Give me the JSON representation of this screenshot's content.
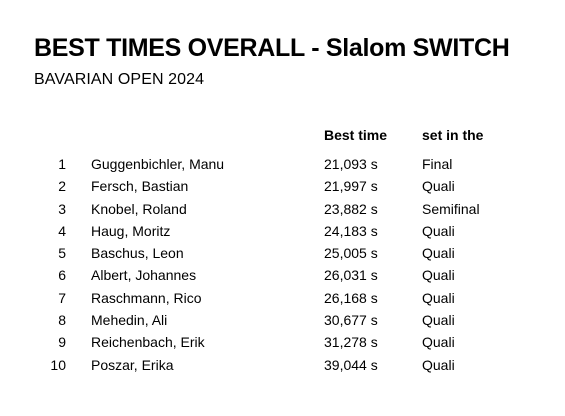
{
  "title": "BEST TIMES OVERALL - Slalom SWITCH",
  "subtitle": "BAVARIAN OPEN 2024",
  "columns": {
    "best_time": "Best time",
    "set_in": "set in the"
  },
  "rows": [
    {
      "rank": "1",
      "name": "Guggenbichler, Manu",
      "time": "21,093 s",
      "set": "Final"
    },
    {
      "rank": "2",
      "name": "Fersch, Bastian",
      "time": "21,997 s",
      "set": "Quali"
    },
    {
      "rank": "3",
      "name": "Knobel, Roland",
      "time": "23,882 s",
      "set": "Semifinal"
    },
    {
      "rank": "4",
      "name": "Haug, Moritz",
      "time": "24,183 s",
      "set": "Quali"
    },
    {
      "rank": "5",
      "name": "Baschus, Leon",
      "time": "25,005 s",
      "set": "Quali"
    },
    {
      "rank": "6",
      "name": "Albert, Johannes",
      "time": "26,031 s",
      "set": "Quali"
    },
    {
      "rank": "7",
      "name": "Raschmann, Rico",
      "time": "26,168 s",
      "set": "Quali"
    },
    {
      "rank": "8",
      "name": "Mehedin, Ali",
      "time": "30,677 s",
      "set": "Quali"
    },
    {
      "rank": "9",
      "name": "Reichenbach, Erik",
      "time": "31,278 s",
      "set": "Quali"
    },
    {
      "rank": "10",
      "name": "Poszar, Erika",
      "time": "39,044 s",
      "set": "Quali"
    }
  ]
}
